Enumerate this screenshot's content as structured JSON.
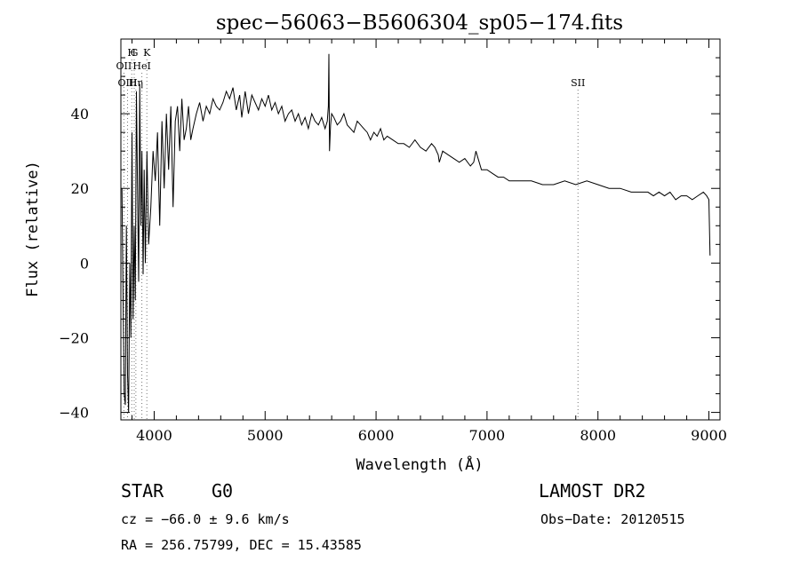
{
  "chart_data": {
    "type": "line",
    "title": "spec−56063−B5606304_sp05−174.fits",
    "xlabel": "Wavelength (Å)",
    "ylabel": "Flux (relative)",
    "xlim": [
      3700,
      9100
    ],
    "ylim": [
      -42,
      60
    ],
    "x_ticks": [
      4000,
      5000,
      6000,
      7000,
      8000,
      9000
    ],
    "x_tick_labels": [
      "4000",
      "5000",
      "6000",
      "7000",
      "8000",
      "9000"
    ],
    "y_ticks": [
      -40,
      -20,
      0,
      20,
      40
    ],
    "y_tick_labels": [
      "−40",
      "−20",
      "0",
      "20",
      "40"
    ],
    "grid": false,
    "series": [
      {
        "x": [
          3710,
          3720,
          3730,
          3740,
          3750,
          3760,
          3770,
          3780,
          3790,
          3800,
          3810,
          3820,
          3830,
          3840,
          3850,
          3860,
          3870,
          3880,
          3890,
          3900,
          3910,
          3920,
          3935,
          3950,
          3970,
          3990,
          4010,
          4030,
          4050,
          4070,
          4090,
          4110,
          4130,
          4150,
          4170,
          4190,
          4210,
          4230,
          4250,
          4270,
          4290,
          4310,
          4330,
          4350,
          4380,
          4410,
          4440,
          4470,
          4500,
          4530,
          4560,
          4590,
          4620,
          4650,
          4680,
          4710,
          4740,
          4770,
          4790,
          4820,
          4850,
          4880,
          4910,
          4940,
          4970,
          5000,
          5030,
          5060,
          5090,
          5120,
          5150,
          5180,
          5210,
          5240,
          5270,
          5300,
          5330,
          5360,
          5390,
          5420,
          5450,
          5480,
          5510,
          5540,
          5560,
          5570,
          5575,
          5580,
          5590,
          5600,
          5620,
          5650,
          5680,
          5710,
          5740,
          5770,
          5800,
          5830,
          5860,
          5890,
          5920,
          5950,
          5980,
          6010,
          6040,
          6070,
          6100,
          6150,
          6200,
          6250,
          6300,
          6350,
          6400,
          6450,
          6500,
          6530,
          6560,
          6570,
          6600,
          6650,
          6700,
          6750,
          6800,
          6850,
          6880,
          6900,
          6950,
          7000,
          7050,
          7100,
          7150,
          7200,
          7300,
          7400,
          7500,
          7600,
          7700,
          7800,
          7900,
          8000,
          8100,
          8200,
          8300,
          8400,
          8450,
          8500,
          8550,
          8600,
          8650,
          8700,
          8750,
          8800,
          8850,
          8900,
          8950,
          8980,
          9000,
          9010
        ],
        "y": [
          20,
          -10,
          -35,
          -38,
          10,
          -30,
          -40,
          0,
          -20,
          35,
          -15,
          10,
          -10,
          46,
          20,
          -5,
          48,
          10,
          30,
          -3,
          25,
          0,
          30,
          5,
          15,
          30,
          22,
          35,
          10,
          38,
          20,
          40,
          25,
          42,
          15,
          38,
          42,
          30,
          44,
          33,
          36,
          42,
          33,
          36,
          40,
          43,
          38,
          42,
          40,
          44,
          42,
          41,
          43,
          46,
          44,
          47,
          41,
          45,
          39,
          46,
          40,
          45,
          43,
          41,
          44,
          42,
          45,
          41,
          43,
          40,
          42,
          38,
          40,
          41,
          38,
          40,
          37,
          39,
          36,
          40,
          38,
          37,
          39,
          36,
          38,
          42,
          56,
          30,
          37,
          40,
          39,
          37,
          38,
          40,
          37,
          36,
          35,
          38,
          37,
          36,
          35,
          33,
          35,
          34,
          36,
          33,
          34,
          33,
          32,
          32,
          31,
          33,
          31,
          30,
          32,
          31,
          29,
          27,
          30,
          29,
          28,
          27,
          28,
          26,
          27,
          30,
          25,
          25,
          24,
          23,
          23,
          22,
          22,
          22,
          21,
          21,
          22,
          21,
          22,
          21,
          20,
          20,
          19,
          19,
          19,
          18,
          19,
          18,
          19,
          17,
          18,
          18,
          17,
          18,
          19,
          18,
          17,
          2
        ]
      }
    ],
    "line_markers": [
      {
        "label": "H",
        "x": 3798,
        "row": 1
      },
      {
        "label": "G",
        "x": 3820,
        "row": 1
      },
      {
        "label": "K",
        "x": 3934,
        "row": 1
      },
      {
        "label": "OII",
        "x": 3727,
        "row": 2
      },
      {
        "label": "HeI",
        "x": 3889,
        "row": 2
      },
      {
        "label": "OIII",
        "x": 3760,
        "row": 3
      },
      {
        "label": "Hη",
        "x": 3835,
        "row": 3
      },
      {
        "label": "SII",
        "x": 7820,
        "row": 3
      }
    ]
  },
  "footer": {
    "class_label": "STAR",
    "subclass_label": "G0",
    "cz_text": "cz = −66.0 ± 9.6 km/s",
    "radec_text": "RA = 256.75799, DEC =  15.43585",
    "survey_label": "LAMOST DR2",
    "obsdate_text": "Obs−Date: 20120515"
  }
}
